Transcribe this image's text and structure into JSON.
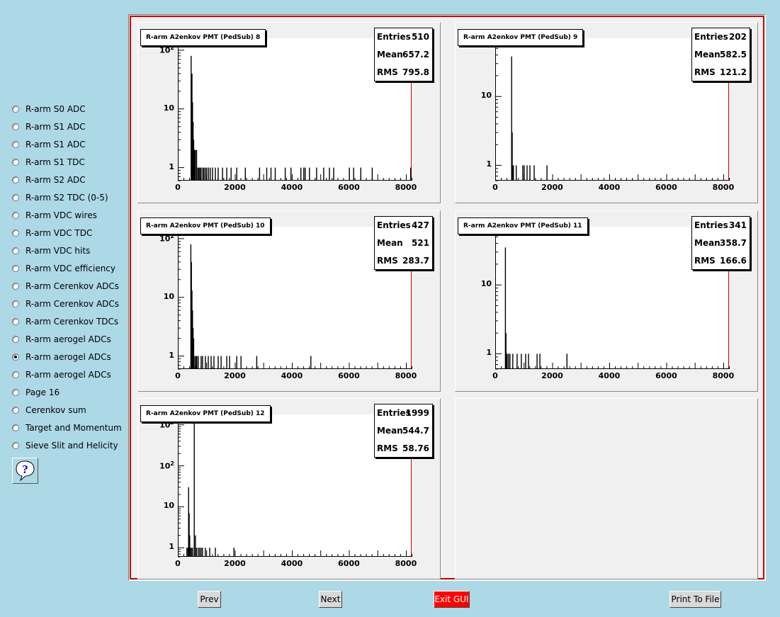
{
  "sidebar": {
    "items": [
      {
        "label": "R-arm S0 ADC",
        "checked": false
      },
      {
        "label": "R-arm S1 ADC",
        "checked": false
      },
      {
        "label": "R-arm S1 ADC",
        "checked": false
      },
      {
        "label": "R-arm S1 TDC",
        "checked": false
      },
      {
        "label": "R-arm S2 ADC",
        "checked": false
      },
      {
        "label": "R-arm S2 TDC (0-5)",
        "checked": false
      },
      {
        "label": "R-arm VDC wires",
        "checked": false
      },
      {
        "label": "R-arm VDC TDC",
        "checked": false
      },
      {
        "label": "R-arm VDC hits",
        "checked": false
      },
      {
        "label": "R-arm VDC efficiency",
        "checked": false
      },
      {
        "label": "R-arm Cerenkov ADCs",
        "checked": false
      },
      {
        "label": "R-arm Cerenkov ADCs",
        "checked": false
      },
      {
        "label": "R-arm Cerenkov TDCs",
        "checked": false
      },
      {
        "label": "R-arm aerogel ADCs",
        "checked": false
      },
      {
        "label": "R-arm aerogel ADCs",
        "checked": true
      },
      {
        "label": "R-arm aerogel ADCs",
        "checked": false
      },
      {
        "label": "Page 16",
        "checked": false
      },
      {
        "label": "Cerenkov sum",
        "checked": false
      },
      {
        "label": "Target and Momentum",
        "checked": false
      },
      {
        "label": "Sieve Slit and Helicity",
        "checked": false
      }
    ],
    "help_icon": "question-mark-icon"
  },
  "buttons": {
    "prev": "Prev",
    "next": "Next",
    "exit": "Exit GUI",
    "print": "Print To File"
  },
  "colors": {
    "background": "#add8e6",
    "exit_button": "#ff0000",
    "frame_border": "#cc0000"
  },
  "chart_data": [
    {
      "type": "bar",
      "title": "R-arm A2enkov PMT (PedSub) 8",
      "stats": {
        "Entries": "510",
        "Mean": "657.2",
        "RMS": "795.8"
      },
      "xlim": [
        0,
        8200
      ],
      "xticks": [
        "0",
        "2000",
        "4000",
        "6000",
        "8000"
      ],
      "yscale": "log",
      "ylim": [
        0.6,
        160
      ],
      "yticks": [
        {
          "value": 1,
          "label": "1"
        },
        {
          "value": 10,
          "label": "10"
        },
        {
          "value": 100,
          "label": "10",
          "exp": "2"
        }
      ],
      "bins": [
        [
          450,
          80
        ],
        [
          480,
          40
        ],
        [
          500,
          13
        ],
        [
          520,
          6
        ],
        [
          540,
          3
        ],
        [
          560,
          2
        ],
        [
          580,
          2
        ],
        [
          600,
          2
        ],
        [
          640,
          2
        ],
        [
          680,
          1
        ],
        [
          720,
          1
        ],
        [
          760,
          1
        ],
        [
          800,
          1
        ],
        [
          860,
          1
        ],
        [
          900,
          1
        ],
        [
          950,
          1
        ],
        [
          1000,
          1
        ],
        [
          1060,
          1
        ],
        [
          1120,
          1
        ],
        [
          1200,
          1
        ],
        [
          1300,
          1
        ],
        [
          1400,
          1
        ],
        [
          1550,
          1
        ],
        [
          1700,
          1
        ],
        [
          1850,
          1
        ],
        [
          2050,
          1
        ],
        [
          2350,
          1
        ],
        [
          2850,
          1
        ],
        [
          3100,
          1
        ],
        [
          3250,
          1
        ],
        [
          3400,
          1
        ],
        [
          3750,
          1
        ],
        [
          3950,
          1
        ],
        [
          4300,
          1
        ],
        [
          4400,
          1
        ],
        [
          4450,
          1
        ],
        [
          4600,
          1
        ],
        [
          4850,
          1
        ],
        [
          5100,
          1
        ],
        [
          5300,
          1
        ],
        [
          5450,
          1
        ],
        [
          6000,
          1
        ],
        [
          6150,
          1
        ],
        [
          6400,
          1
        ],
        [
          6800,
          1
        ],
        [
          8150,
          1
        ]
      ]
    },
    {
      "type": "bar",
      "title": "R-arm A2enkov PMT (PedSub) 9",
      "stats": {
        "Entries": "202",
        "Mean": "582.5",
        "RMS": "121.2"
      },
      "xlim": [
        0,
        8200
      ],
      "xticks": [
        "0",
        "2000",
        "4000",
        "6000",
        "8000"
      ],
      "yscale": "log",
      "ylim": [
        0.6,
        70
      ],
      "yticks": [
        {
          "value": 1,
          "label": "1"
        },
        {
          "value": 10,
          "label": "10"
        }
      ],
      "bins": [
        [
          560,
          38
        ],
        [
          580,
          3
        ],
        [
          600,
          1
        ],
        [
          620,
          1
        ],
        [
          720,
          1
        ],
        [
          950,
          1
        ],
        [
          1000,
          1
        ],
        [
          1100,
          1
        ],
        [
          1200,
          1
        ],
        [
          1350,
          1
        ],
        [
          1800,
          1
        ]
      ]
    },
    {
      "type": "bar",
      "title": "R-arm A2enkov PMT (PedSub) 10",
      "stats": {
        "Entries": "427",
        "Mean": "521",
        "RMS": "283.7"
      },
      "xlim": [
        0,
        8200
      ],
      "xticks": [
        "0",
        "2000",
        "4000",
        "6000",
        "8000"
      ],
      "yscale": "log",
      "ylim": [
        0.6,
        160
      ],
      "yticks": [
        {
          "value": 1,
          "label": "1"
        },
        {
          "value": 10,
          "label": "10"
        },
        {
          "value": 100,
          "label": "10",
          "exp": "2"
        }
      ],
      "bins": [
        [
          440,
          80
        ],
        [
          460,
          40
        ],
        [
          480,
          13
        ],
        [
          500,
          6
        ],
        [
          520,
          3
        ],
        [
          540,
          2
        ],
        [
          580,
          1
        ],
        [
          620,
          1
        ],
        [
          650,
          1
        ],
        [
          700,
          1
        ],
        [
          800,
          1
        ],
        [
          850,
          1
        ],
        [
          950,
          1
        ],
        [
          1050,
          1
        ],
        [
          1150,
          1
        ],
        [
          1250,
          1
        ],
        [
          1400,
          1
        ],
        [
          1500,
          1
        ],
        [
          1700,
          1
        ],
        [
          1800,
          1
        ],
        [
          2050,
          1
        ],
        [
          2200,
          1
        ],
        [
          2750,
          1
        ],
        [
          4650,
          1
        ]
      ]
    },
    {
      "type": "bar",
      "title": "R-arm A2enkov PMT (PedSub) 11",
      "stats": {
        "Entries": "341",
        "Mean": "358.7",
        "RMS": "166.6"
      },
      "xlim": [
        0,
        8200
      ],
      "xticks": [
        "0",
        "2000",
        "4000",
        "6000",
        "8000"
      ],
      "yscale": "log",
      "ylim": [
        0.6,
        70
      ],
      "yticks": [
        {
          "value": 1,
          "label": "1"
        },
        {
          "value": 10,
          "label": "10"
        }
      ],
      "bins": [
        [
          340,
          35
        ],
        [
          360,
          2
        ],
        [
          380,
          1
        ],
        [
          400,
          1
        ],
        [
          450,
          1
        ],
        [
          500,
          1
        ],
        [
          600,
          1
        ],
        [
          750,
          1
        ],
        [
          900,
          1
        ],
        [
          1050,
          1
        ],
        [
          1150,
          1
        ],
        [
          1450,
          1
        ],
        [
          1550,
          1
        ],
        [
          2500,
          1
        ]
      ]
    },
    {
      "type": "bar",
      "title": "R-arm A2enkov PMT (PedSub) 12",
      "stats": {
        "Entries": "1999",
        "Mean": "544.7",
        "RMS": "58.76"
      },
      "xlim": [
        0,
        8200
      ],
      "xticks": [
        "0",
        "2000",
        "4000",
        "6000",
        "8000"
      ],
      "yscale": "log",
      "ylim": [
        0.6,
        1800
      ],
      "yticks": [
        {
          "value": 1,
          "label": "1"
        },
        {
          "value": 10,
          "label": "10"
        },
        {
          "value": 100,
          "label": "10",
          "exp": "2"
        },
        {
          "value": 1000,
          "label": "10",
          "exp": "3"
        }
      ],
      "bins": [
        [
          300,
          1
        ],
        [
          340,
          1
        ],
        [
          360,
          30
        ],
        [
          380,
          7
        ],
        [
          400,
          2
        ],
        [
          420,
          1
        ],
        [
          460,
          1
        ],
        [
          500,
          1
        ],
        [
          560,
          1200
        ],
        [
          600,
          2
        ],
        [
          640,
          1
        ],
        [
          700,
          1
        ],
        [
          750,
          1
        ],
        [
          800,
          1
        ],
        [
          850,
          1
        ],
        [
          950,
          1
        ],
        [
          1100,
          1
        ],
        [
          1300,
          1
        ],
        [
          1950,
          1
        ]
      ]
    }
  ]
}
